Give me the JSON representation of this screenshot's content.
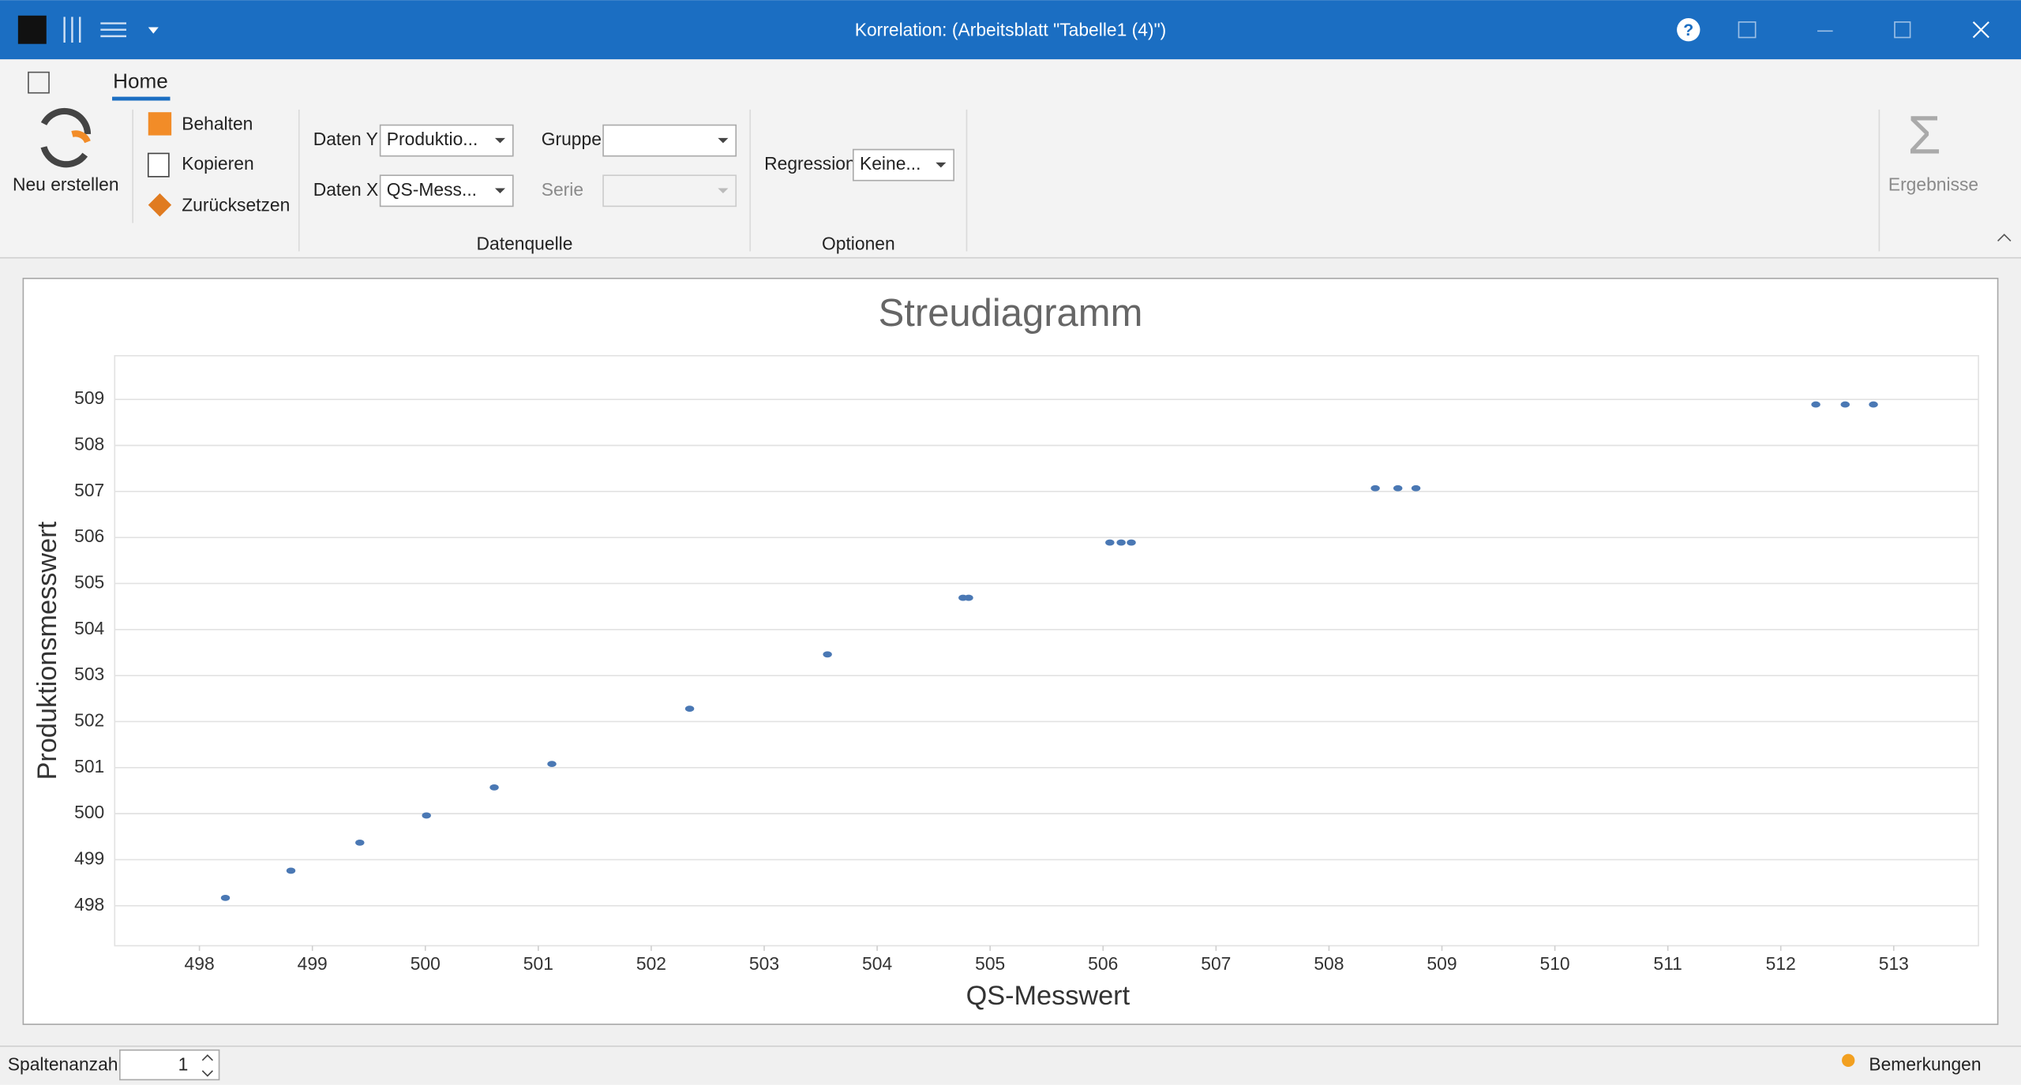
{
  "window": {
    "title": "Korrelation:  (Arbeitsblatt \"Tabelle1 (4)\")"
  },
  "ribbon": {
    "tab": "Home",
    "new": "Neu erstellen",
    "keep": "Behalten",
    "copy": "Kopieren",
    "reset": "Zurücksetzen",
    "daten_y_label": "Daten Y",
    "daten_y_value": "Produktio...",
    "daten_x_label": "Daten X",
    "daten_x_value": "QS-Mess...",
    "gruppe_label": "Gruppe",
    "serie_label": "Serie",
    "group_datenquelle": "Datenquelle",
    "regression_label": "Regression",
    "regression_value": "Keine...",
    "group_optionen": "Optionen",
    "results": "Ergebnisse"
  },
  "chart_data": {
    "type": "scatter",
    "title": "Streudiagramm",
    "x_label": "QS-Messwert",
    "y_label": "Produktionsmesswert",
    "color": "#4a78b4",
    "x": [
      498.23,
      498.81,
      499.42,
      500.01,
      500.61,
      501.12,
      502.34,
      503.56,
      504.76,
      504.81,
      506.06,
      506.16,
      506.25,
      508.41,
      508.61,
      508.77,
      512.31,
      512.57,
      512.82
    ],
    "y": [
      498.17,
      498.76,
      499.37,
      499.96,
      500.57,
      501.08,
      502.28,
      503.46,
      504.69,
      504.69,
      505.89,
      505.89,
      505.89,
      507.07,
      507.07,
      507.07,
      508.89,
      508.89,
      508.89
    ],
    "xlim": [
      497.25,
      513.75
    ],
    "ylim": [
      497.13,
      509.95
    ],
    "xticks": [
      498,
      499,
      500,
      501,
      502,
      503,
      504,
      505,
      506,
      507,
      508,
      509,
      510,
      511,
      512,
      513
    ],
    "yticks": [
      498,
      499,
      500,
      501,
      502,
      503,
      504,
      505,
      506,
      507,
      508,
      509
    ],
    "grid": true
  },
  "status": {
    "columns_label": "Spaltenanzahl",
    "columns_value": 1,
    "notes": "Bemerkungen"
  }
}
